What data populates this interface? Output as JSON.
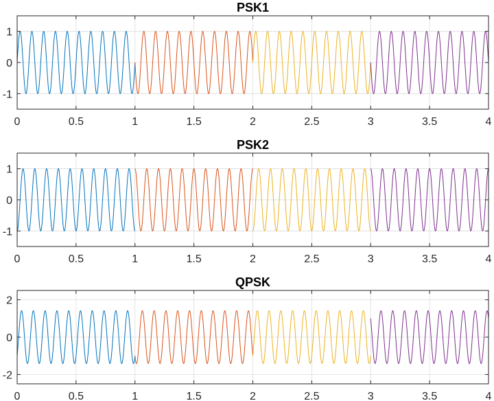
{
  "chart_data": [
    {
      "type": "line",
      "title": "PSK1",
      "xlabel": "",
      "ylabel": "",
      "xlim": [
        0,
        4
      ],
      "ylim": [
        -1.5,
        1.5
      ],
      "xticks": [
        0,
        0.5,
        1,
        1.5,
        2,
        2.5,
        3,
        3.5,
        4
      ],
      "xtick_labels": [
        "0",
        "0.5",
        "1",
        "1.5",
        "2",
        "2.5",
        "3",
        "3.5",
        "4"
      ],
      "yticks": [
        -1,
        0,
        1
      ],
      "ytick_labels": [
        "-1",
        "0",
        "1"
      ],
      "grid": true,
      "carrier_frequency": 10,
      "amplitude": 1,
      "series": [
        {
          "x_range": [
            0,
            1
          ],
          "phase_deg": 270,
          "color": "#0072BD"
        },
        {
          "x_range": [
            1,
            2
          ],
          "phase_deg": 90,
          "color": "#D95319"
        },
        {
          "x_range": [
            2,
            3
          ],
          "phase_deg": 270,
          "color": "#EDB120"
        },
        {
          "x_range": [
            3,
            4
          ],
          "phase_deg": 90,
          "color": "#7E2F8E"
        }
      ]
    },
    {
      "type": "line",
      "title": "PSK2",
      "xlabel": "",
      "ylabel": "",
      "xlim": [
        0,
        4
      ],
      "ylim": [
        -1.5,
        1.5
      ],
      "xticks": [
        0,
        0.5,
        1,
        1.5,
        2,
        2.5,
        3,
        3.5,
        4
      ],
      "xtick_labels": [
        "0",
        "0.5",
        "1",
        "1.5",
        "2",
        "2.5",
        "3",
        "3.5",
        "4"
      ],
      "yticks": [
        -1,
        0,
        1
      ],
      "ytick_labels": [
        "-1",
        "0",
        "1"
      ],
      "grid": true,
      "carrier_frequency": 10,
      "amplitude": 1,
      "series": [
        {
          "x_range": [
            0,
            1
          ],
          "phase_deg": 180,
          "color": "#0072BD"
        },
        {
          "x_range": [
            1,
            2
          ],
          "phase_deg": 0,
          "color": "#D95319"
        },
        {
          "x_range": [
            2,
            3
          ],
          "phase_deg": 180,
          "color": "#EDB120"
        },
        {
          "x_range": [
            3,
            4
          ],
          "phase_deg": 0,
          "color": "#7E2F8E"
        }
      ]
    },
    {
      "type": "line",
      "title": "QPSK",
      "xlabel": "",
      "ylabel": "",
      "xlim": [
        0,
        4
      ],
      "ylim": [
        -2.5,
        2.5
      ],
      "xticks": [
        0,
        0.5,
        1,
        1.5,
        2,
        2.5,
        3,
        3.5,
        4
      ],
      "xtick_labels": [
        "0",
        "0.5",
        "1",
        "1.5",
        "2",
        "2.5",
        "3",
        "3.5",
        "4"
      ],
      "yticks": [
        -2,
        0,
        2
      ],
      "ytick_labels": [
        "-2",
        "0",
        "2"
      ],
      "grid": true,
      "carrier_frequency": 10,
      "amplitude": 1.414,
      "series": [
        {
          "x_range": [
            0,
            1
          ],
          "phase_deg": 225,
          "color": "#0072BD"
        },
        {
          "x_range": [
            1,
            2
          ],
          "phase_deg": 135,
          "color": "#D95319"
        },
        {
          "x_range": [
            2,
            3
          ],
          "phase_deg": 225,
          "color": "#EDB120"
        },
        {
          "x_range": [
            3,
            4
          ],
          "phase_deg": 45,
          "color": "#7E2F8E"
        }
      ]
    }
  ]
}
